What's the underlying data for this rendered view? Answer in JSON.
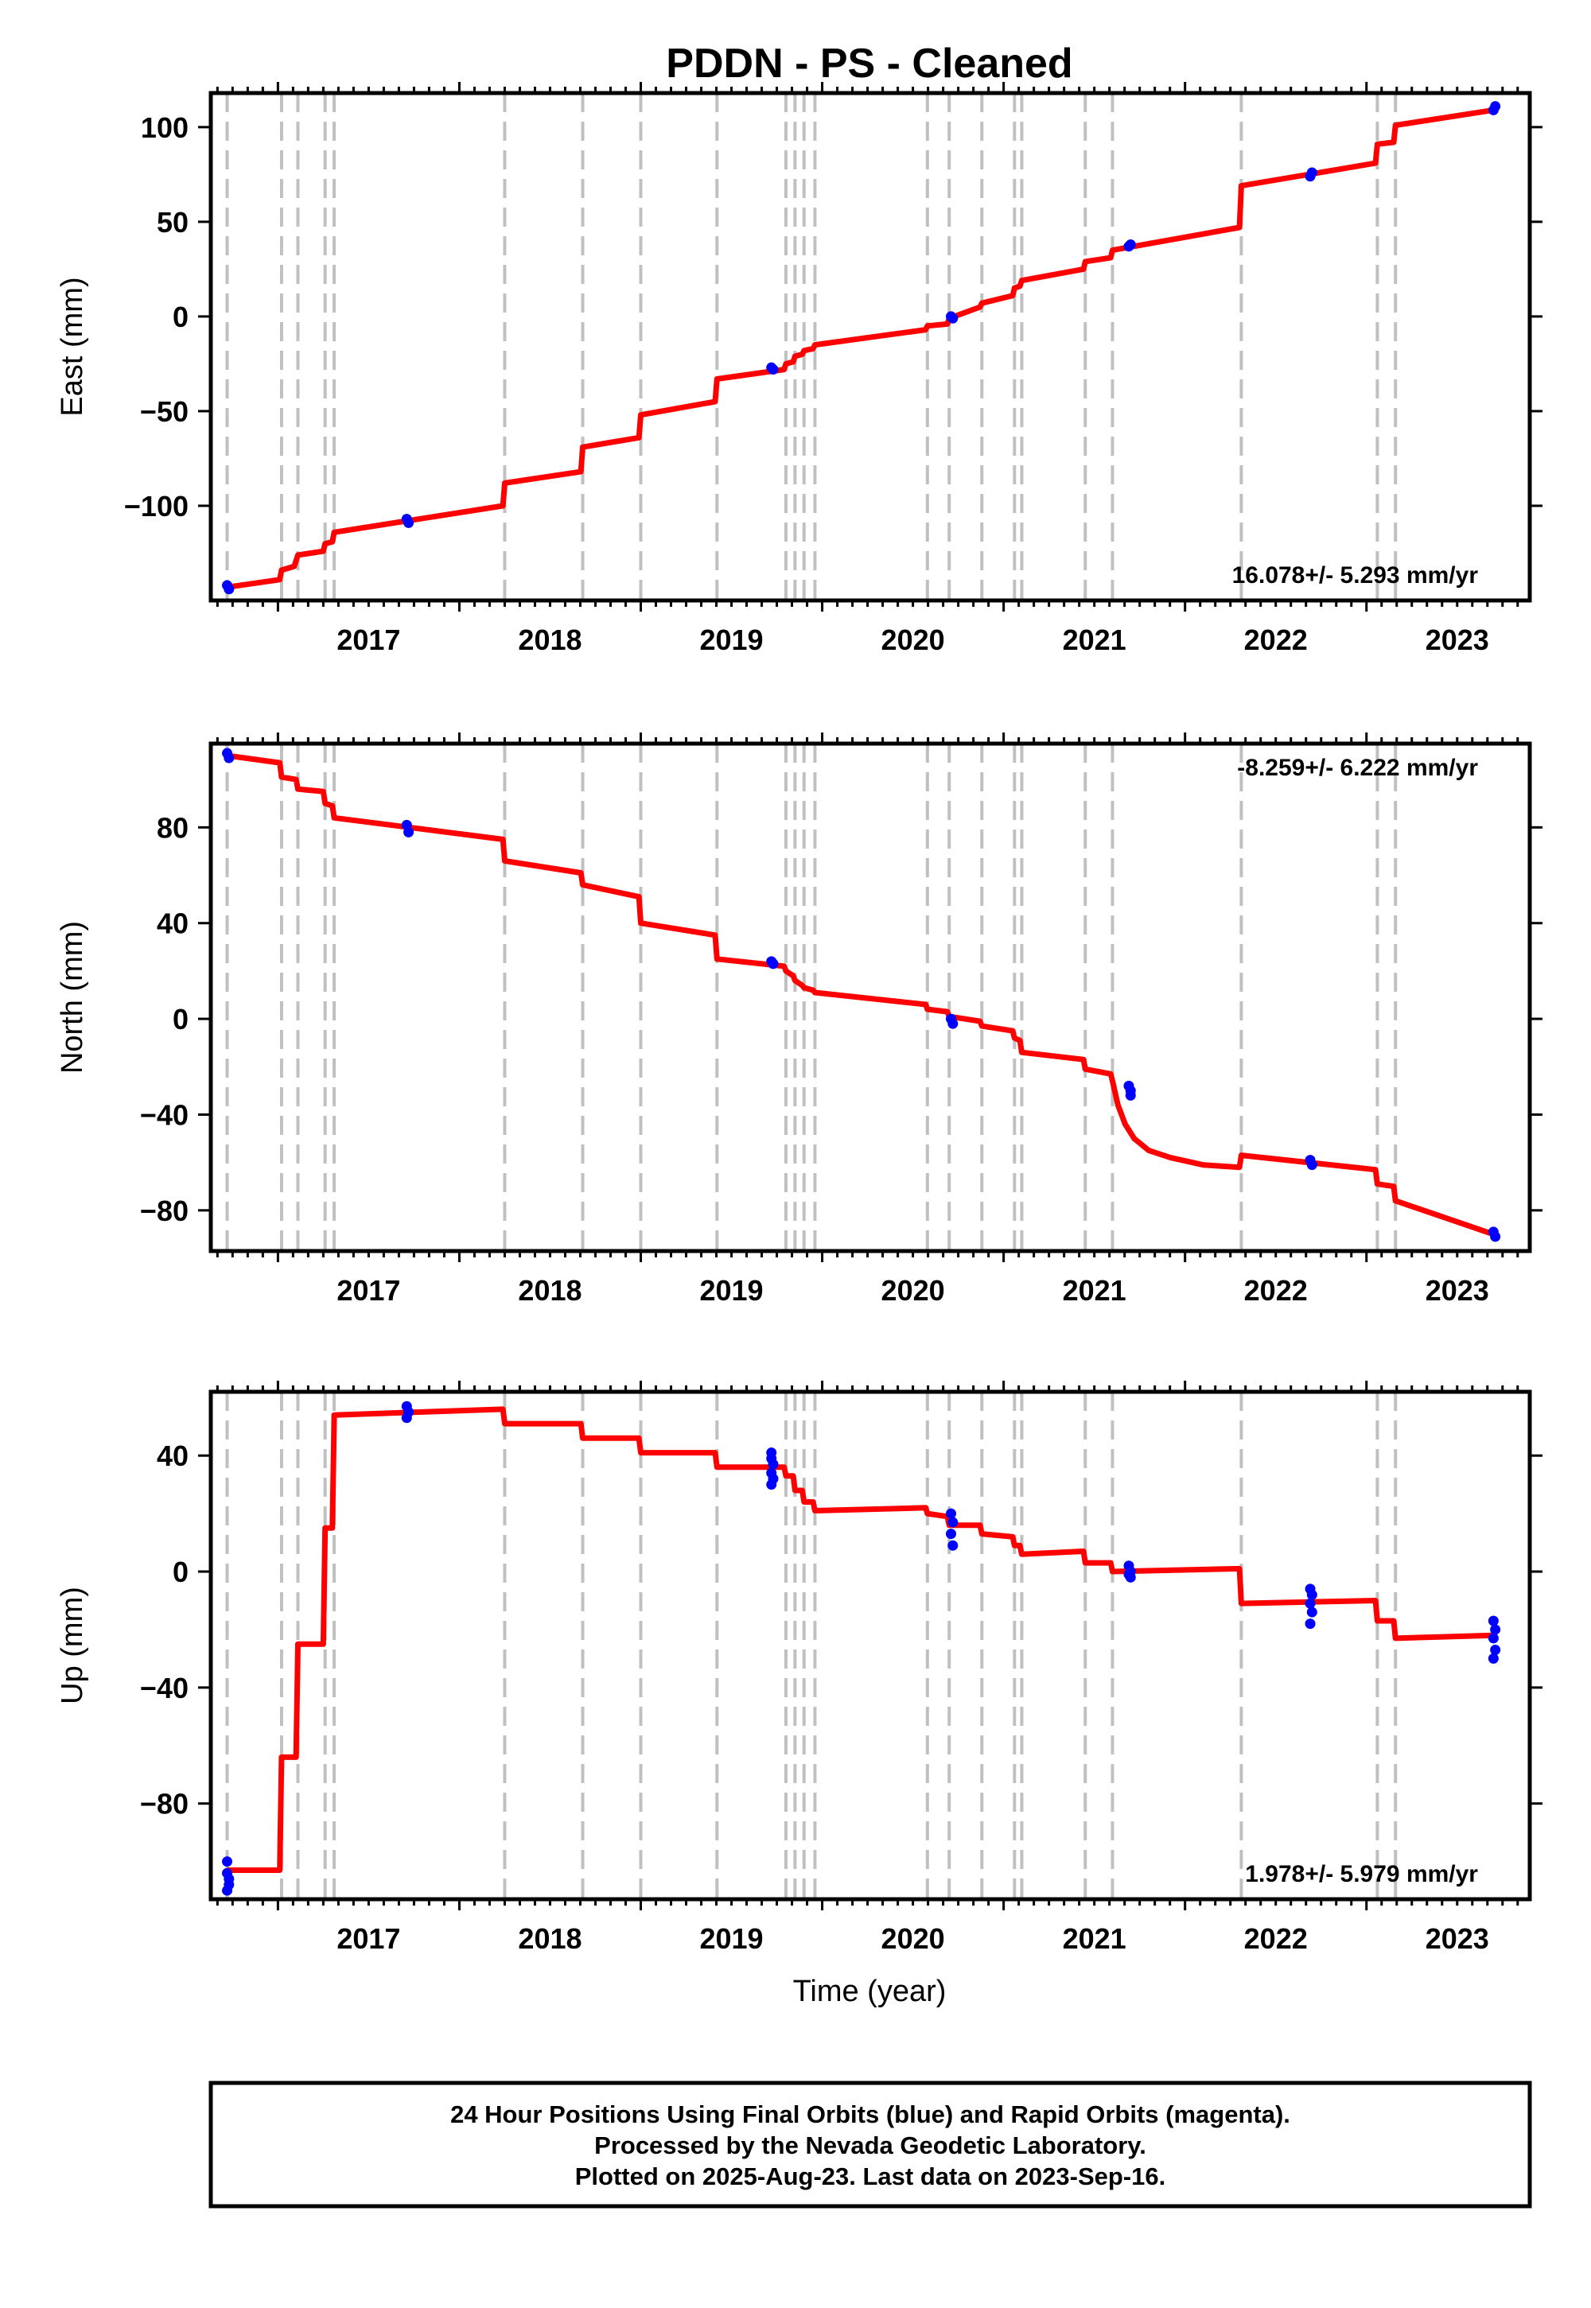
{
  "title": "PDDN  - PS - Cleaned",
  "xlabel": "Time (year)",
  "colors": {
    "model": "#ff0000",
    "final_orbits": "#0000ff",
    "rapid_orbits": "#ff00ff",
    "event_lines": "#c0c0c0"
  },
  "footer": {
    "line1": "24 Hour Positions Using Final Orbits (blue) and Rapid Orbits (magenta).",
    "line2": "Processed by the Nevada Geodetic Laboratory.",
    "line3": "Plotted on 2025-Aug-23. Last data on 2023-Sep-16."
  },
  "chart_data": [
    {
      "type": "line",
      "ylabel": "East (mm)",
      "rate_text": "16.078+/- 5.293 mm/yr",
      "rate_position": "bottom-right",
      "xlim": [
        2016.63,
        2023.9
      ],
      "ylim": [
        -150,
        118
      ],
      "xticks": [
        2017,
        2018,
        2019,
        2020,
        2021,
        2022,
        2023
      ],
      "yticks": [
        100,
        50,
        0,
        -50,
        -100
      ],
      "ytick_labels": [
        "100",
        "50",
        "0",
        "−50",
        "−100"
      ],
      "event_lines": [
        2016.72,
        2017.02,
        2017.11,
        2017.26,
        2017.31,
        2018.25,
        2018.68,
        2019.0,
        2019.42,
        2019.8,
        2019.85,
        2019.9,
        2019.96,
        2020.58,
        2020.7,
        2020.88,
        2021.06,
        2021.1,
        2021.45,
        2021.6,
        2022.31,
        2023.06,
        2023.16
      ],
      "series": [
        {
          "role": "model",
          "x": [
            2016.72,
            2017.01,
            2017.02,
            2017.09,
            2017.11,
            2017.25,
            2017.26,
            2017.3,
            2017.31,
            2018.24,
            2018.25,
            2018.67,
            2018.68,
            2018.99,
            2019.0,
            2019.41,
            2019.42,
            2019.79,
            2019.8,
            2019.84,
            2019.85,
            2019.89,
            2019.9,
            2019.95,
            2019.96,
            2020.57,
            2020.58,
            2020.69,
            2020.7,
            2020.87,
            2020.88,
            2021.05,
            2021.06,
            2021.09,
            2021.1,
            2021.44,
            2021.45,
            2021.59,
            2021.6,
            2022.3,
            2022.31,
            2023.05,
            2023.06,
            2023.15,
            2023.16,
            2023.7
          ],
          "y": [
            -143,
            -139,
            -134,
            -132,
            -126,
            -124,
            -120,
            -119,
            -114,
            -100,
            -88,
            -82,
            -69,
            -64,
            -52,
            -45,
            -33,
            -28,
            -25,
            -24,
            -21,
            -20,
            -18,
            -17,
            -15,
            -7,
            -5,
            -4,
            -1,
            5,
            7,
            11,
            15,
            16,
            19,
            25,
            29,
            31,
            35,
            47,
            69,
            81,
            91,
            92,
            101,
            109
          ]
        },
        {
          "role": "final_orbits",
          "type": "scatter",
          "x": [
            2016.72,
            2016.73,
            2017.71,
            2017.72,
            2019.72,
            2019.73,
            2020.71,
            2020.72,
            2021.69,
            2021.7,
            2022.69,
            2022.7,
            2023.7,
            2023.71
          ],
          "y": [
            -142,
            -144,
            -107,
            -109,
            -27,
            -28,
            0,
            -1,
            37,
            38,
            74,
            76,
            109,
            111
          ]
        }
      ]
    },
    {
      "type": "line",
      "ylabel": "North (mm)",
      "rate_text": "-8.259+/- 6.222 mm/yr",
      "rate_position": "top-right",
      "xlim": [
        2016.63,
        2023.9
      ],
      "ylim": [
        -97,
        115
      ],
      "xticks": [
        2017,
        2018,
        2019,
        2020,
        2021,
        2022,
        2023
      ],
      "yticks": [
        80,
        40,
        0,
        -40,
        -80
      ],
      "ytick_labels": [
        "80",
        "40",
        "0",
        "−40",
        "−80"
      ],
      "event_lines": [
        2016.72,
        2017.02,
        2017.11,
        2017.26,
        2017.31,
        2018.25,
        2018.68,
        2019.0,
        2019.42,
        2019.8,
        2019.85,
        2019.9,
        2019.96,
        2020.58,
        2020.7,
        2020.88,
        2021.06,
        2021.1,
        2021.45,
        2021.6,
        2022.31,
        2023.06,
        2023.16
      ],
      "series": [
        {
          "role": "model",
          "x": [
            2016.72,
            2017.01,
            2017.02,
            2017.1,
            2017.11,
            2017.25,
            2017.26,
            2017.3,
            2017.31,
            2018.24,
            2018.25,
            2018.67,
            2018.68,
            2018.99,
            2019.0,
            2019.41,
            2019.42,
            2019.79,
            2019.8,
            2019.84,
            2019.85,
            2019.89,
            2019.9,
            2019.95,
            2019.96,
            2020.57,
            2020.58,
            2020.69,
            2020.7,
            2020.87,
            2020.88,
            2021.05,
            2021.06,
            2021.09,
            2021.1,
            2021.44,
            2021.45,
            2021.59,
            2021.6,
            2021.63,
            2021.67,
            2021.72,
            2021.8,
            2021.92,
            2022.1,
            2022.3,
            2022.31,
            2023.05,
            2023.06,
            2023.15,
            2023.16,
            2023.7
          ],
          "y": [
            110,
            107,
            101,
            100,
            96,
            95,
            90,
            89,
            84,
            75,
            66,
            61,
            56,
            51,
            40,
            35,
            25,
            22,
            20,
            18,
            16,
            14,
            13,
            12,
            11,
            6,
            4,
            3,
            1,
            -1,
            -3,
            -5,
            -8,
            -9,
            -14,
            -17,
            -21,
            -23,
            -26,
            -36,
            -44,
            -50,
            -55,
            -58,
            -61,
            -62,
            -57,
            -63,
            -69,
            -70,
            -76,
            -90
          ]
        },
        {
          "role": "final_orbits",
          "type": "scatter",
          "x": [
            2016.72,
            2016.73,
            2017.71,
            2017.72,
            2019.72,
            2019.73,
            2020.71,
            2020.72,
            2021.69,
            2021.7,
            2021.7,
            2022.69,
            2022.7,
            2023.7,
            2023.71
          ],
          "y": [
            111,
            109,
            81,
            78,
            24,
            23,
            0,
            -2,
            -28,
            -30,
            -32,
            -59,
            -61,
            -89,
            -91
          ]
        }
      ]
    },
    {
      "type": "line",
      "ylabel": "Up (mm)",
      "rate_text": "1.978+/- 5.979 mm/yr",
      "rate_position": "bottom-right",
      "xlim": [
        2016.63,
        2023.9
      ],
      "ylim": [
        -113,
        62
      ],
      "xticks": [
        2017,
        2018,
        2019,
        2020,
        2021,
        2022,
        2023
      ],
      "yticks": [
        40,
        0,
        -40,
        -80
      ],
      "ytick_labels": [
        "40",
        "0",
        "−40",
        "−80"
      ],
      "event_lines": [
        2016.72,
        2017.02,
        2017.11,
        2017.26,
        2017.31,
        2018.25,
        2018.68,
        2019.0,
        2019.42,
        2019.8,
        2019.85,
        2019.9,
        2019.96,
        2020.58,
        2020.7,
        2020.88,
        2021.06,
        2021.1,
        2021.45,
        2021.6,
        2022.31,
        2023.06,
        2023.16
      ],
      "series": [
        {
          "role": "model",
          "x": [
            2016.72,
            2017.01,
            2017.02,
            2017.1,
            2017.11,
            2017.25,
            2017.26,
            2017.3,
            2017.31,
            2018.24,
            2018.25,
            2018.67,
            2018.68,
            2018.99,
            2019.0,
            2019.41,
            2019.42,
            2019.79,
            2019.8,
            2019.84,
            2019.85,
            2019.89,
            2019.9,
            2019.95,
            2019.96,
            2020.57,
            2020.58,
            2020.69,
            2020.7,
            2020.87,
            2020.88,
            2021.05,
            2021.06,
            2021.09,
            2021.1,
            2021.44,
            2021.45,
            2021.59,
            2021.6,
            2022.3,
            2022.31,
            2023.05,
            2023.06,
            2023.15,
            2023.16,
            2023.7
          ],
          "y": [
            -103,
            -103,
            -64,
            -64,
            -25,
            -25,
            15,
            15,
            54,
            56,
            51,
            51,
            46,
            46,
            41,
            41,
            36,
            36,
            33,
            33,
            28,
            28,
            24,
            24,
            21,
            22,
            20,
            19,
            16,
            16,
            13,
            12,
            9,
            9,
            6,
            7,
            3,
            3,
            0,
            1,
            -11,
            -10,
            -17,
            -17,
            -23,
            -22
          ]
        },
        {
          "role": "final_orbits",
          "type": "scatter",
          "x": [
            2016.72,
            2016.72,
            2016.73,
            2016.73,
            2016.72,
            2017.71,
            2017.72,
            2017.71,
            2019.72,
            2019.72,
            2019.73,
            2019.72,
            2019.73,
            2019.72,
            2020.71,
            2020.72,
            2020.71,
            2020.72,
            2021.69,
            2021.7,
            2021.69,
            2021.7,
            2022.69,
            2022.7,
            2022.69,
            2022.7,
            2022.69,
            2023.7,
            2023.71,
            2023.7,
            2023.71,
            2023.7
          ],
          "y": [
            -100,
            -104,
            -106,
            -108,
            -110,
            57,
            55,
            53,
            41,
            39,
            37,
            34,
            32,
            30,
            20,
            17,
            13,
            9,
            2,
            0,
            -1,
            -2,
            -6,
            -8,
            -11,
            -14,
            -18,
            -17,
            -20,
            -23,
            -27,
            -30
          ]
        }
      ]
    }
  ]
}
